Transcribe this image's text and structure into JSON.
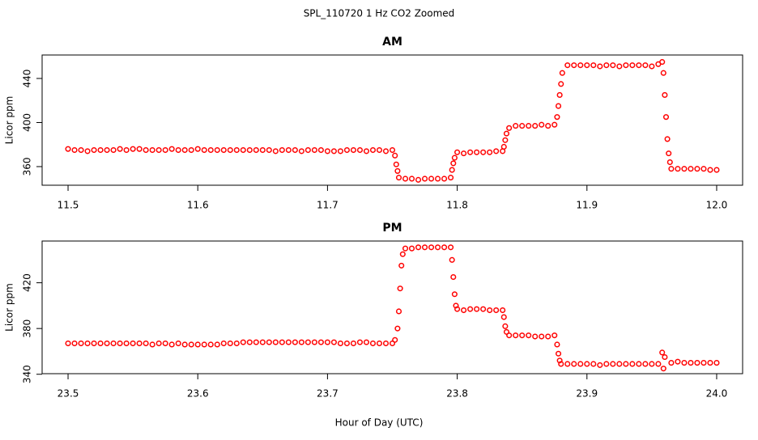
{
  "title": "SPL_110720  1 Hz CO2 Zoomed",
  "x_label": "Hour of Day (UTC)",
  "chart_data": [
    {
      "type": "scatter",
      "title": "AM",
      "y_label": "Licor ppm",
      "color": "#ff0000",
      "xlim": [
        11.48,
        12.02
      ],
      "ylim": [
        343.1,
        461.3
      ],
      "xticks": [
        11.5,
        11.6,
        11.7,
        11.8,
        11.9,
        {
          "value": 12,
          "label": "12.0"
        }
      ],
      "yticks": [
        360,
        400,
        440
      ],
      "x": [
        11.5,
        11.505,
        11.51,
        11.515,
        11.52,
        11.525,
        11.53,
        11.535,
        11.54,
        11.545,
        11.55,
        11.555,
        11.56,
        11.565,
        11.57,
        11.575,
        11.58,
        11.585,
        11.59,
        11.595,
        11.6,
        11.605,
        11.61,
        11.615,
        11.62,
        11.625,
        11.63,
        11.635,
        11.64,
        11.645,
        11.65,
        11.655,
        11.66,
        11.665,
        11.67,
        11.675,
        11.68,
        11.685,
        11.69,
        11.695,
        11.7,
        11.705,
        11.71,
        11.715,
        11.72,
        11.725,
        11.73,
        11.735,
        11.74,
        11.745,
        11.75,
        11.752,
        11.753,
        11.754,
        11.755,
        11.76,
        11.765,
        11.77,
        11.775,
        11.78,
        11.785,
        11.79,
        11.795,
        11.796,
        11.797,
        11.798,
        11.8,
        11.805,
        11.81,
        11.815,
        11.82,
        11.825,
        11.83,
        11.835,
        11.836,
        11.837,
        11.838,
        11.84,
        11.845,
        11.85,
        11.855,
        11.86,
        11.865,
        11.87,
        11.875,
        11.877,
        11.878,
        11.879,
        11.88,
        11.881,
        11.885,
        11.89,
        11.895,
        11.9,
        11.905,
        11.91,
        11.915,
        11.92,
        11.925,
        11.93,
        11.935,
        11.94,
        11.945,
        11.95,
        11.955,
        11.958,
        11.959,
        11.96,
        11.961,
        11.962,
        11.963,
        11.964,
        11.965,
        11.97,
        11.975,
        11.98,
        11.985,
        11.99,
        11.995,
        12.0
      ],
      "y": [
        376,
        375,
        375,
        374,
        375,
        375,
        375,
        375,
        376,
        375,
        376,
        376,
        375,
        375,
        375,
        375,
        376,
        375,
        375,
        375,
        376,
        375,
        375,
        375,
        375,
        375,
        375,
        375,
        375,
        375,
        375,
        375,
        374,
        375,
        375,
        375,
        374,
        375,
        375,
        375,
        374,
        374,
        374,
        375,
        375,
        375,
        374,
        375,
        375,
        374,
        375,
        370,
        362,
        356,
        350,
        349,
        349,
        348,
        349,
        349,
        349,
        349,
        350,
        357,
        363,
        368,
        373,
        372,
        373,
        373,
        373,
        373,
        374,
        374,
        378,
        384,
        390,
        395,
        397,
        397,
        397,
        397,
        398,
        397,
        398,
        405,
        415,
        425,
        435,
        445,
        452,
        452,
        452,
        452,
        452,
        451,
        452,
        452,
        451,
        452,
        452,
        452,
        452,
        451,
        453,
        455,
        445,
        425,
        405,
        385,
        372,
        364,
        358,
        358,
        358,
        358,
        358,
        358,
        357,
        357
      ]
    },
    {
      "type": "scatter",
      "title": "PM",
      "y_label": "Licor ppm",
      "color": "#ff0000",
      "xlim": [
        23.48,
        24.02
      ],
      "ylim": [
        340.5,
        456.5
      ],
      "xticks": [
        23.5,
        23.6,
        23.7,
        23.8,
        23.9,
        {
          "value": 24,
          "label": "24.0"
        }
      ],
      "yticks": [
        340,
        380,
        420
      ],
      "x": [
        23.5,
        23.505,
        23.51,
        23.515,
        23.52,
        23.525,
        23.53,
        23.535,
        23.54,
        23.545,
        23.55,
        23.555,
        23.56,
        23.565,
        23.57,
        23.575,
        23.58,
        23.585,
        23.59,
        23.595,
        23.6,
        23.605,
        23.61,
        23.615,
        23.62,
        23.625,
        23.63,
        23.635,
        23.64,
        23.645,
        23.65,
        23.655,
        23.66,
        23.665,
        23.67,
        23.675,
        23.68,
        23.685,
        23.69,
        23.695,
        23.7,
        23.705,
        23.71,
        23.715,
        23.72,
        23.725,
        23.73,
        23.735,
        23.74,
        23.745,
        23.75,
        23.752,
        23.754,
        23.755,
        23.756,
        23.757,
        23.758,
        23.76,
        23.765,
        23.77,
        23.775,
        23.78,
        23.785,
        23.79,
        23.795,
        23.796,
        23.797,
        23.798,
        23.799,
        23.8,
        23.805,
        23.81,
        23.815,
        23.82,
        23.825,
        23.83,
        23.835,
        23.836,
        23.837,
        23.838,
        23.84,
        23.845,
        23.85,
        23.855,
        23.86,
        23.865,
        23.87,
        23.875,
        23.877,
        23.878,
        23.879,
        23.88,
        23.885,
        23.89,
        23.895,
        23.9,
        23.905,
        23.91,
        23.915,
        23.92,
        23.925,
        23.93,
        23.935,
        23.94,
        23.945,
        23.95,
        23.955,
        23.958,
        23.959,
        23.96,
        23.965,
        23.97,
        23.975,
        23.98,
        23.985,
        23.99,
        23.995,
        24.0
      ],
      "y": [
        367,
        367,
        367,
        367,
        367,
        367,
        367,
        367,
        367,
        367,
        367,
        367,
        367,
        366,
        367,
        367,
        366,
        367,
        366,
        366,
        366,
        366,
        366,
        366,
        367,
        367,
        367,
        368,
        368,
        368,
        368,
        368,
        368,
        368,
        368,
        368,
        368,
        368,
        368,
        368,
        368,
        368,
        367,
        367,
        367,
        368,
        368,
        367,
        367,
        367,
        367,
        370,
        380,
        395,
        415,
        435,
        445,
        450,
        450,
        451,
        451,
        451,
        451,
        451,
        451,
        440,
        425,
        410,
        400,
        397,
        396,
        397,
        397,
        397,
        396,
        396,
        396,
        390,
        382,
        377,
        374,
        374,
        374,
        374,
        373,
        373,
        373,
        374,
        366,
        358,
        352,
        349,
        349,
        349,
        349,
        349,
        349,
        348,
        349,
        349,
        349,
        349,
        349,
        349,
        349,
        349,
        349,
        359,
        345,
        355,
        350,
        351,
        350,
        350,
        350,
        350,
        350,
        350
      ]
    }
  ]
}
